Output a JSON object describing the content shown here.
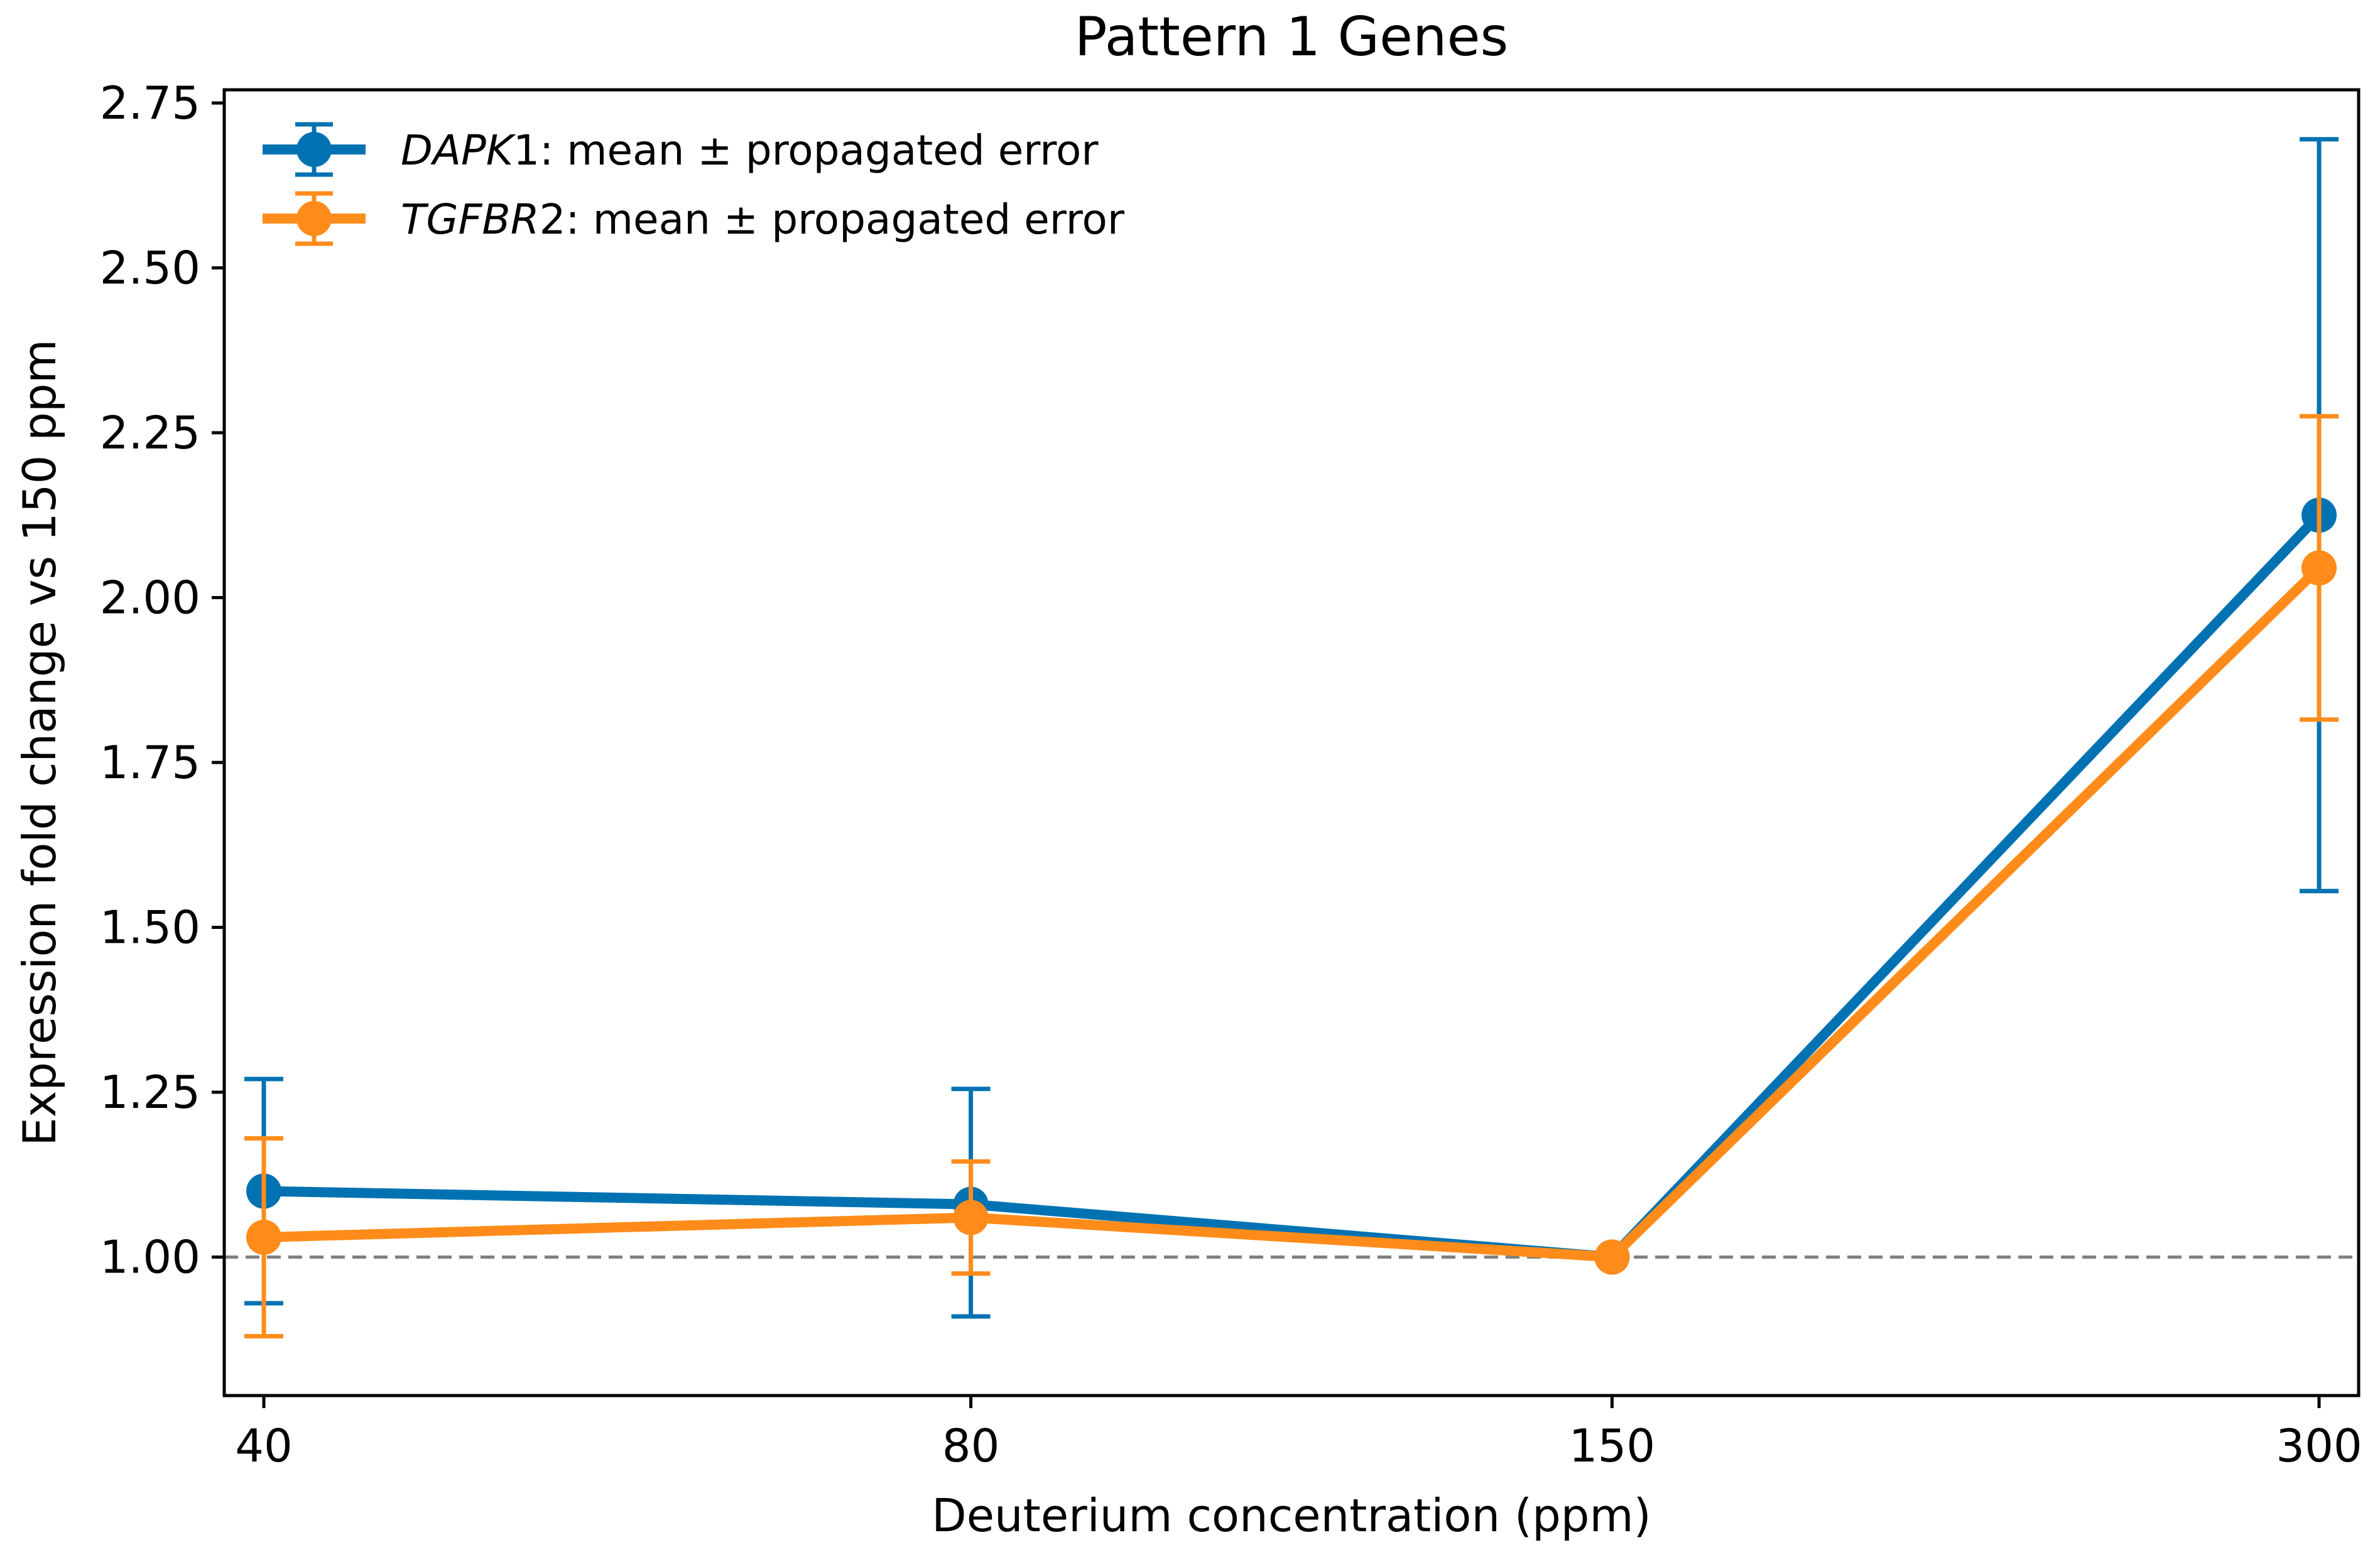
{
  "chart_data": {
    "type": "line",
    "title": "Pattern 1 Genes",
    "xlabel": "Deuterium concentration (ppm)",
    "ylabel": "Expression fold change vs 150 ppm",
    "x_scale": "log",
    "x_ticks": [
      40,
      80,
      150,
      300
    ],
    "x_tick_labels": [
      "40",
      "80",
      "150",
      "300"
    ],
    "ylim": [
      0.79,
      2.77
    ],
    "y_ticks": [
      1.0,
      1.25,
      1.5,
      1.75,
      2.0,
      2.25,
      2.5,
      2.75
    ],
    "y_tick_labels": [
      "1.00",
      "1.25",
      "1.50",
      "1.75",
      "2.00",
      "2.25",
      "2.50",
      "2.75"
    ],
    "reference_line": {
      "y": 1.0,
      "style": "dashed",
      "color": "#808080"
    },
    "grid": false,
    "legend_position": "top-left",
    "x": [
      40,
      80,
      150,
      300
    ],
    "series": [
      {
        "name_italic": "DAPK",
        "name_rest": "1: mean ±  propagated error",
        "color": "#0072B2",
        "values": [
          1.1,
          1.08,
          1.0,
          2.125
        ],
        "err_low": [
          0.93,
          0.91,
          1.0,
          1.555
        ],
        "err_high": [
          1.27,
          1.255,
          1.0,
          2.695
        ]
      },
      {
        "name_italic": "TGFBR",
        "name_rest": "2: mean ±  propagated error",
        "color": "#FF8C1A",
        "values": [
          1.03,
          1.06,
          1.0,
          2.045
        ],
        "err_low": [
          0.88,
          0.975,
          1.0,
          1.815
        ],
        "err_high": [
          1.18,
          1.145,
          1.0,
          2.275
        ]
      }
    ]
  }
}
